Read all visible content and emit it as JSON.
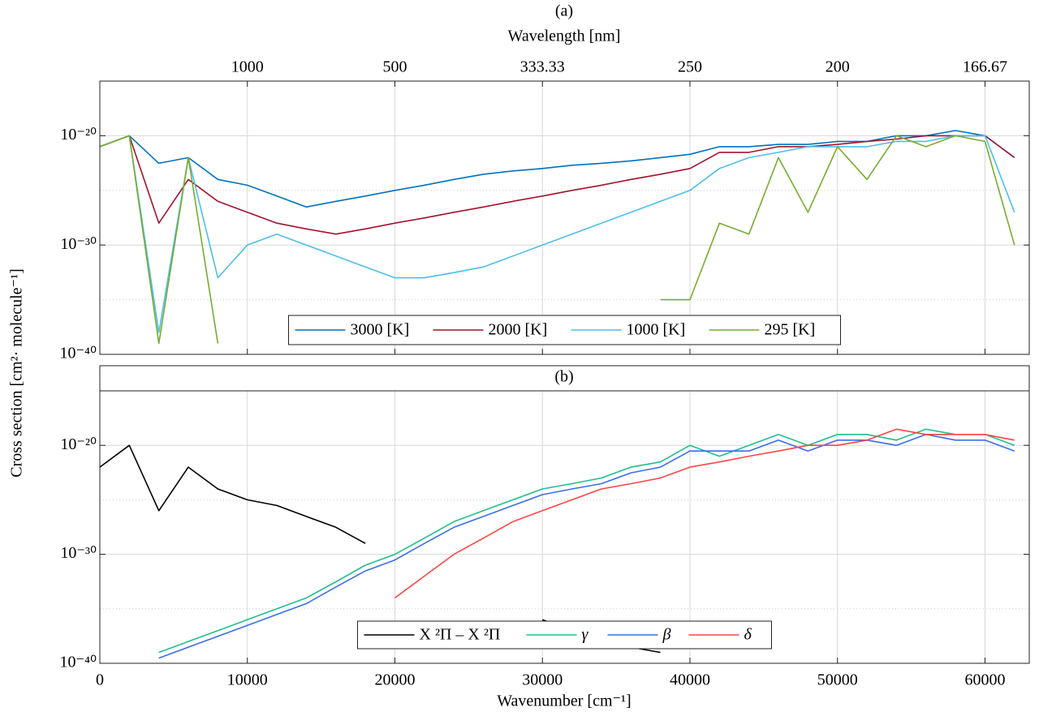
{
  "chart_data": [
    {
      "type": "line",
      "title": "(a)",
      "x2label": "Wavelength [nm]",
      "ylabel": "Cross section [cm²· molecule⁻¹]",
      "x": [
        0,
        2000,
        4000,
        6000,
        8000,
        10000,
        12000,
        14000,
        16000,
        18000,
        20000,
        22000,
        24000,
        26000,
        28000,
        30000,
        32000,
        34000,
        36000,
        38000,
        40000,
        42000,
        44000,
        46000,
        48000,
        50000,
        52000,
        54000,
        56000,
        58000,
        60000,
        62000
      ],
      "xlim": [
        0,
        63000
      ],
      "xticks": [
        0,
        10000,
        20000,
        30000,
        40000,
        50000,
        60000
      ],
      "x2ticks": [
        {
          "value": 10000,
          "label": "1000"
        },
        {
          "value": 20000,
          "label": "500"
        },
        {
          "value": 30000,
          "label": "333.33"
        },
        {
          "value": 40000,
          "label": "250"
        },
        {
          "value": 50000,
          "label": "200"
        },
        {
          "value": 60000,
          "label": "166.67"
        }
      ],
      "ylim": [
        1e-40,
        1e-15
      ],
      "log_y": true,
      "yticks": [
        {
          "value": 1e-40,
          "label": "10⁻⁴⁰"
        },
        {
          "value": 1e-30,
          "label": "10⁻³⁰"
        },
        {
          "value": 1e-20,
          "label": "10⁻²⁰"
        }
      ],
      "minor_yticks": [
        1e-35,
        1e-25
      ],
      "grid": true,
      "legend": "lower center",
      "series": [
        {
          "name": "3000 [K]",
          "color": "#0072bd",
          "values": [
            1e-21,
            1e-20,
            3e-23,
            1e-22,
            1e-24,
            3e-25,
            3e-26,
            3e-27,
            1e-26,
            3e-26,
            1e-25,
            3e-25,
            1e-24,
            3e-24,
            6e-24,
            1e-23,
            2e-23,
            3e-23,
            5e-23,
            1e-22,
            2e-22,
            1e-21,
            1e-21,
            1.6e-21,
            1.6e-21,
            3e-21,
            3e-21,
            1e-20,
            1e-20,
            3e-20,
            1e-20,
            1e-22
          ]
        },
        {
          "name": "2000 [K]",
          "color": "#a2142f",
          "values": [
            1e-21,
            1e-20,
            1e-28,
            1e-24,
            1e-26,
            1e-27,
            1e-28,
            3e-29,
            1e-29,
            3e-29,
            1e-28,
            3e-28,
            1e-27,
            3e-27,
            1e-26,
            3e-26,
            1e-25,
            3e-25,
            1e-24,
            3e-24,
            1e-23,
            3e-22,
            3e-22,
            1e-21,
            1e-21,
            1.6e-21,
            3e-21,
            5e-21,
            1e-20,
            1e-20,
            1e-20,
            1e-22
          ]
        },
        {
          "name": "1000 [K]",
          "color": "#4dbeee",
          "values": [
            1e-21,
            1e-20,
            1e-38,
            1e-22,
            1e-33,
            1e-30,
            1e-29,
            1e-30,
            1e-31,
            1e-32,
            1e-33,
            1e-33,
            3e-33,
            1e-32,
            1e-31,
            1e-30,
            1e-29,
            1e-28,
            1e-27,
            1e-26,
            1e-25,
            1e-23,
            1e-22,
            3e-22,
            1e-21,
            1e-21,
            1e-21,
            3e-21,
            3e-21,
            1e-20,
            1e-20,
            1e-27
          ]
        },
        {
          "name": "295 [K]",
          "color": "#77ac30",
          "values": [
            1e-21,
            1e-20,
            1e-39,
            1e-22,
            1e-39,
            null,
            null,
            null,
            null,
            null,
            null,
            null,
            null,
            null,
            null,
            null,
            null,
            null,
            null,
            1e-35,
            1e-35,
            1e-28,
            1e-29,
            1e-22,
            1e-27,
            1e-21,
            1e-24,
            1e-20,
            1e-21,
            1e-20,
            3e-21,
            1e-30
          ]
        }
      ]
    },
    {
      "type": "line",
      "title": "(b)",
      "xlabel": "Wavenumber [cm⁻¹]",
      "x": [
        0,
        2000,
        4000,
        6000,
        8000,
        10000,
        12000,
        14000,
        16000,
        18000,
        20000,
        22000,
        24000,
        26000,
        28000,
        30000,
        32000,
        34000,
        36000,
        38000,
        40000,
        42000,
        44000,
        46000,
        48000,
        50000,
        52000,
        54000,
        56000,
        58000,
        60000,
        62000
      ],
      "xlim": [
        0,
        63000
      ],
      "xticks": [
        0,
        10000,
        20000,
        30000,
        40000,
        50000,
        60000
      ],
      "ylim": [
        1e-40,
        1e-15
      ],
      "log_y": true,
      "yticks": [
        {
          "value": 1e-40,
          "label": "10⁻⁴⁰"
        },
        {
          "value": 1e-30,
          "label": "10⁻³⁰"
        },
        {
          "value": 1e-20,
          "label": "10⁻²⁰"
        }
      ],
      "minor_yticks": [
        1e-35,
        1e-25
      ],
      "grid": true,
      "legend": "lower center",
      "series": [
        {
          "name": "X ²Π – X ²Π",
          "color": "#000000",
          "values": [
            1e-22,
            1e-20,
            1e-26,
            1e-22,
            1e-24,
            1e-25,
            3e-26,
            3e-27,
            3e-28,
            1e-29,
            null,
            null,
            null,
            null,
            null,
            1e-36,
            1e-37,
            1e-38,
            3e-39,
            1e-39,
            null,
            null,
            null,
            null,
            null,
            null,
            null,
            null,
            null,
            null,
            null,
            null
          ]
        },
        {
          "name": "γ",
          "color": "#1fc08c",
          "values": [
            null,
            null,
            1e-39,
            1e-38,
            1e-37,
            1e-36,
            1e-35,
            1e-34,
            3e-33,
            1e-31,
            1e-30,
            3e-29,
            1e-27,
            1e-26,
            1e-25,
            1e-24,
            3e-24,
            1e-23,
            1e-22,
            3e-22,
            1e-20,
            1e-21,
            1e-20,
            1e-19,
            1e-20,
            1e-19,
            1e-19,
            3e-20,
            3e-19,
            1e-19,
            1e-19,
            1e-20
          ]
        },
        {
          "name": "β",
          "color": "#3b6ee8",
          "values": [
            null,
            null,
            3e-40,
            3e-39,
            3e-38,
            3e-37,
            3e-36,
            3e-35,
            1e-33,
            3e-32,
            3e-31,
            1e-29,
            3e-28,
            3e-27,
            3e-26,
            3e-25,
            1e-24,
            3e-24,
            3e-23,
            1e-22,
            3e-21,
            3e-21,
            3e-21,
            3e-20,
            3e-21,
            3e-20,
            3e-20,
            1e-20,
            1e-19,
            3e-20,
            3e-20,
            3e-21
          ]
        },
        {
          "name": "δ",
          "color": "#ff4545",
          "values": [
            null,
            null,
            null,
            null,
            null,
            null,
            null,
            null,
            null,
            null,
            1e-34,
            1e-32,
            1e-30,
            3e-29,
            1e-27,
            1e-26,
            1e-25,
            1e-24,
            3e-24,
            1e-23,
            1e-22,
            3e-22,
            1e-21,
            3e-21,
            1e-20,
            1e-20,
            3e-20,
            3e-19,
            1e-19,
            1e-19,
            1e-19,
            3e-20
          ]
        }
      ]
    }
  ]
}
